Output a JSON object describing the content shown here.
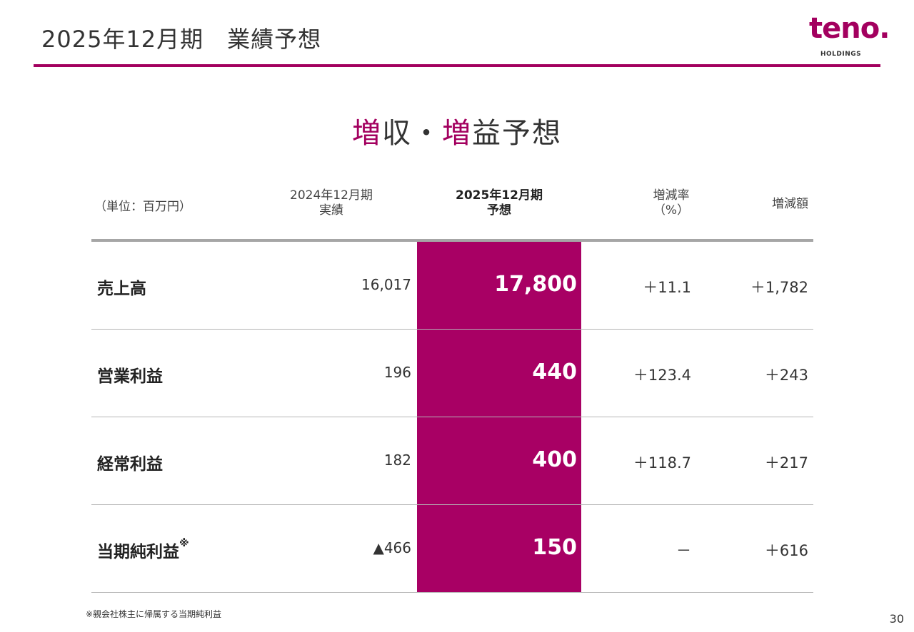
{
  "page": {
    "title": "2025年12月期　業績予想",
    "page_number": "30",
    "footnote": "※親会社株主に帰属する当期純利益"
  },
  "logo": {
    "text": "teno.",
    "sub": "HOLDINGS"
  },
  "headline": {
    "part1": "増",
    "part2": "収・",
    "part3": "増",
    "part4": "益予想"
  },
  "table": {
    "unit_label": "（単位：百万円）",
    "headers": {
      "fy2024_line1": "2024年12月期",
      "fy2024_line2": "実績",
      "fy2025_line1": "2025年12月期",
      "fy2025_line2": "予想",
      "rate_line1": "増減率",
      "rate_line2": "（%）",
      "diff": "増減額"
    },
    "rows": [
      {
        "label": "売上高",
        "note": "",
        "fy2024": "16,017",
        "fy2025": "17,800",
        "rate": "＋11.1",
        "diff": "＋1,782"
      },
      {
        "label": "営業利益",
        "note": "",
        "fy2024": "196",
        "fy2025": "440",
        "rate": "＋123.4",
        "diff": "＋243"
      },
      {
        "label": "経常利益",
        "note": "",
        "fy2024": "182",
        "fy2025": "400",
        "rate": "＋118.7",
        "diff": "＋217"
      },
      {
        "label": "当期純利益",
        "note": "※",
        "fy2024": "▲466",
        "fy2025": "150",
        "rate": "－",
        "diff": "＋616"
      }
    ]
  },
  "colors": {
    "accent": "#a3005f",
    "highlight": "#a80064",
    "rule": "#a6a6a6"
  }
}
